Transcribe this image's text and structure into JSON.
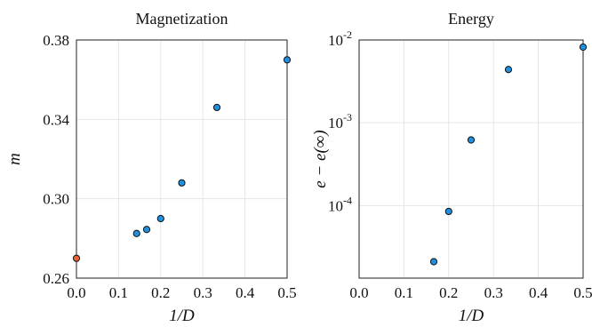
{
  "chart_data": [
    {
      "type": "scatter",
      "title": "Magnetization",
      "xlabel": "1/D",
      "ylabel": "m",
      "xlim": [
        0,
        0.5
      ],
      "ylim": [
        0.26,
        0.38
      ],
      "xticks": [
        "0.0",
        "0.1",
        "0.2",
        "0.3",
        "0.4",
        "0.5"
      ],
      "yticks": [
        "0.26",
        "0.30",
        "0.34",
        "0.38"
      ],
      "yscale": "linear",
      "grid": true,
      "series": [
        {
          "points": [
            {
              "x": 0.5,
              "y": 0.37,
              "color": "#1f8fdf"
            },
            {
              "x": 0.3333,
              "y": 0.346,
              "color": "#1f8fdf"
            },
            {
              "x": 0.25,
              "y": 0.308,
              "color": "#1f8fdf"
            },
            {
              "x": 0.2,
              "y": 0.29,
              "color": "#1f8fdf"
            },
            {
              "x": 0.1667,
              "y": 0.2845,
              "color": "#1f8fdf"
            },
            {
              "x": 0.1429,
              "y": 0.2825,
              "color": "#1f8fdf"
            },
            {
              "x": 0.0,
              "y": 0.27,
              "color": "#e8603c"
            }
          ]
        }
      ]
    },
    {
      "type": "scatter",
      "title": "Energy",
      "xlabel": "1/D",
      "ylabel": "e − e(∞)",
      "xlim": [
        0,
        0.5
      ],
      "ylim": [
        1.33e-05,
        0.01
      ],
      "xticks": [
        "0.0",
        "0.1",
        "0.2",
        "0.3",
        "0.4",
        "0.5"
      ],
      "yticks": [
        "10-4",
        "10-3",
        "10-2"
      ],
      "yscale": "log",
      "grid": true,
      "series": [
        {
          "points": [
            {
              "x": 0.5,
              "y": 0.0082,
              "color": "#1f8fdf"
            },
            {
              "x": 0.3333,
              "y": 0.0044,
              "color": "#1f8fdf"
            },
            {
              "x": 0.25,
              "y": 0.00062,
              "color": "#1f8fdf"
            },
            {
              "x": 0.2,
              "y": 8.5e-05,
              "color": "#1f8fdf"
            },
            {
              "x": 0.1667,
              "y": 2.1e-05,
              "color": "#1f8fdf"
            }
          ]
        }
      ]
    }
  ]
}
